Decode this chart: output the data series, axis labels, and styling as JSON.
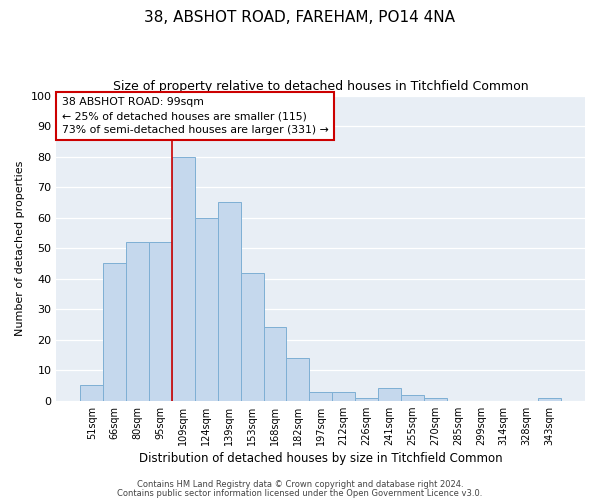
{
  "title": "38, ABSHOT ROAD, FAREHAM, PO14 4NA",
  "subtitle": "Size of property relative to detached houses in Titchfield Common",
  "xlabel": "Distribution of detached houses by size in Titchfield Common",
  "ylabel": "Number of detached properties",
  "bin_labels": [
    "51sqm",
    "66sqm",
    "80sqm",
    "95sqm",
    "109sqm",
    "124sqm",
    "139sqm",
    "153sqm",
    "168sqm",
    "182sqm",
    "197sqm",
    "212sqm",
    "226sqm",
    "241sqm",
    "255sqm",
    "270sqm",
    "285sqm",
    "299sqm",
    "314sqm",
    "328sqm",
    "343sqm"
  ],
  "bar_values": [
    5,
    45,
    52,
    52,
    80,
    60,
    65,
    42,
    24,
    14,
    3,
    3,
    1,
    4,
    2,
    1,
    0,
    0,
    0,
    0,
    1
  ],
  "bar_color": "#c5d8ed",
  "bar_edge_color": "#7eafd4",
  "vline_x": 3.5,
  "vline_color": "#cc0000",
  "annotation_title": "38 ABSHOT ROAD: 99sqm",
  "annotation_line2": "← 25% of detached houses are smaller (115)",
  "annotation_line3": "73% of semi-detached houses are larger (331) →",
  "annotation_box_color": "#cc0000",
  "ylim": [
    0,
    100
  ],
  "yticks": [
    0,
    10,
    20,
    30,
    40,
    50,
    60,
    70,
    80,
    90,
    100
  ],
  "footer1": "Contains HM Land Registry data © Crown copyright and database right 2024.",
  "footer2": "Contains public sector information licensed under the Open Government Licence v3.0.",
  "bg_color": "#e8eef5",
  "title_fontsize": 11,
  "subtitle_fontsize": 9
}
